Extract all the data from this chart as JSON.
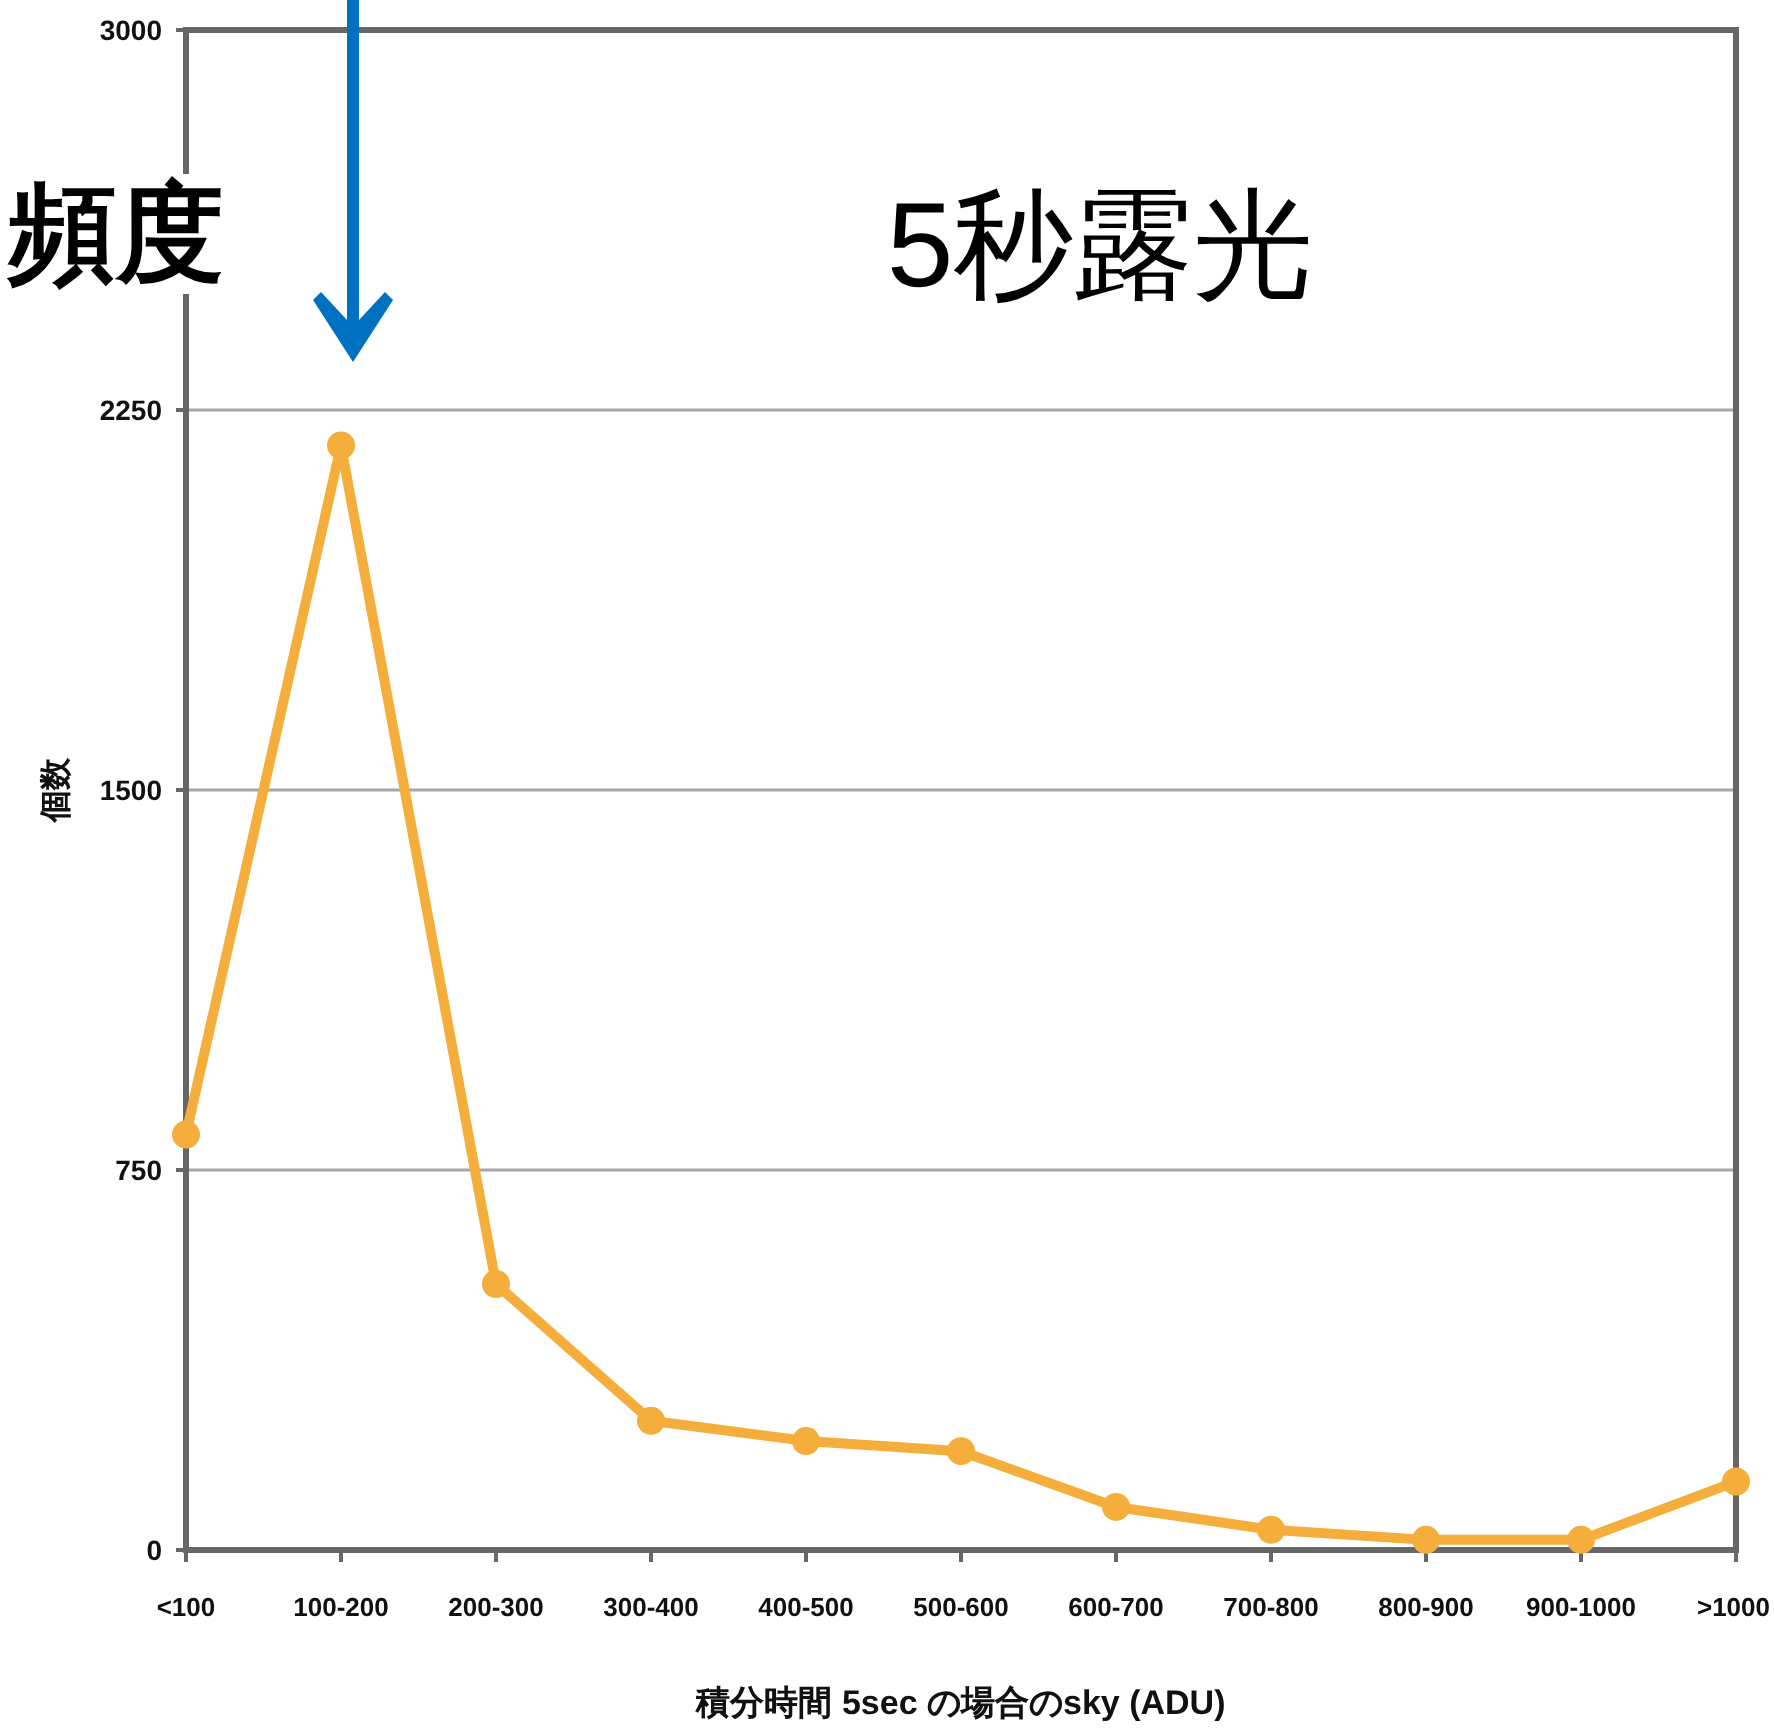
{
  "chart_data": {
    "type": "line",
    "title": "5秒露光",
    "annotations": [
      "頻度"
    ],
    "xlabel": "積分時間 5sec の場合のsky (ADU)",
    "ylabel": "個数",
    "categories": [
      "<100",
      "100-200",
      "200-300",
      "300-400",
      "400-500",
      "500-600",
      "600-700",
      "700-800",
      "800-900",
      "900-1000",
      ">1000"
    ],
    "series": [
      {
        "color": "#f5ad3c",
        "values": [
          820,
          2180,
          525,
          255,
          215,
          195,
          85,
          40,
          20,
          20,
          135
        ]
      }
    ],
    "ylim": [
      0,
      3000
    ],
    "yticks": [
      0,
      750,
      1500,
      2250,
      3000
    ],
    "grid": "y",
    "marker": "circle",
    "line_style": "solid"
  }
}
